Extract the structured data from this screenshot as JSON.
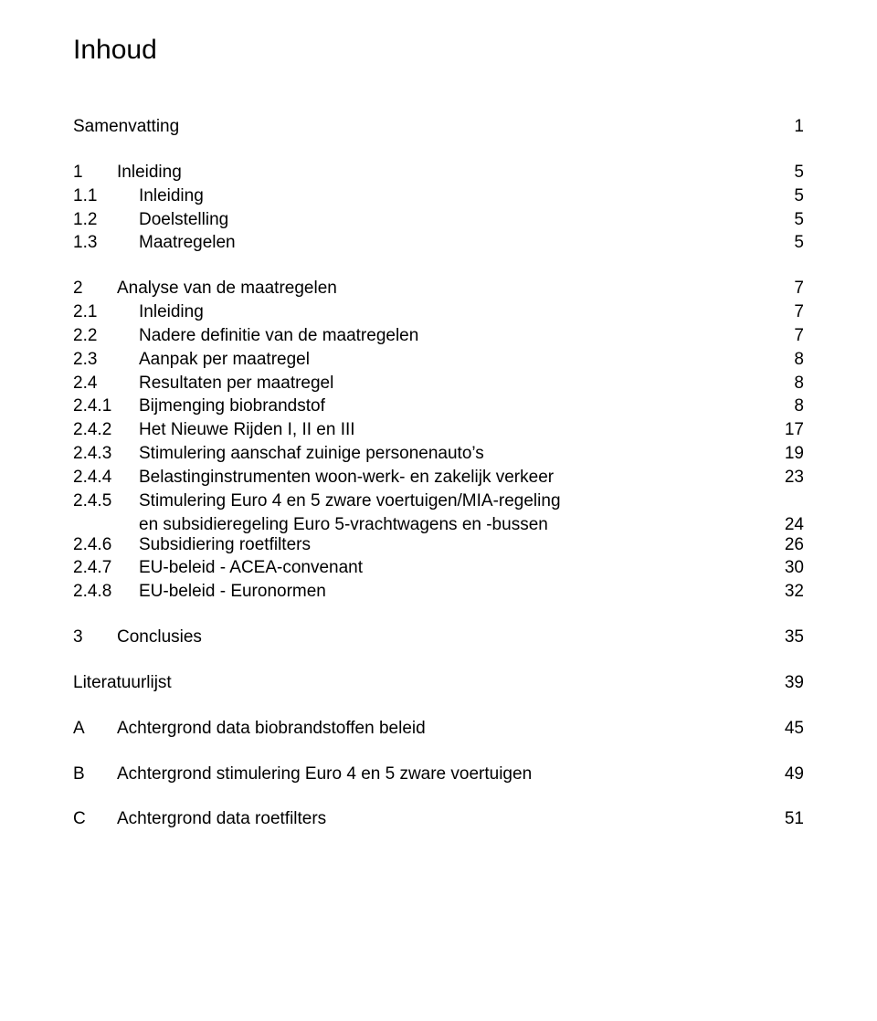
{
  "title": "Inhoud",
  "font": {
    "family": "Arial",
    "title_size_pt": 22,
    "body_size_pt": 14,
    "color": "#000000"
  },
  "background_color": "#ffffff",
  "entries": [
    {
      "num": "",
      "label": "Samenvatting",
      "page": "1",
      "level": 0
    },
    {
      "num": "1",
      "label": "Inleiding",
      "page": "5",
      "level": 1
    },
    {
      "num": "1.1",
      "label": "Inleiding",
      "page": "5",
      "level": 2
    },
    {
      "num": "1.2",
      "label": "Doelstelling",
      "page": "5",
      "level": 2
    },
    {
      "num": "1.3",
      "label": "Maatregelen",
      "page": "5",
      "level": 2
    },
    {
      "num": "2",
      "label": "Analyse van de maatregelen",
      "page": "7",
      "level": 1
    },
    {
      "num": "2.1",
      "label": "Inleiding",
      "page": "7",
      "level": 2
    },
    {
      "num": "2.2",
      "label": "Nadere definitie van de maatregelen",
      "page": "7",
      "level": 2
    },
    {
      "num": "2.3",
      "label": "Aanpak per maatregel",
      "page": "8",
      "level": 2
    },
    {
      "num": "2.4",
      "label": "Resultaten per maatregel",
      "page": "8",
      "level": 2
    },
    {
      "num": "2.4.1",
      "label": "Bijmenging biobrandstof",
      "page": "8",
      "level": 2
    },
    {
      "num": "2.4.2",
      "label": "Het Nieuwe Rijden I, II en III",
      "page": "17",
      "level": 2
    },
    {
      "num": "2.4.3",
      "label": "Stimulering aanschaf zuinige personenauto’s",
      "page": "19",
      "level": 2
    },
    {
      "num": "2.4.4",
      "label": "Belastinginstrumenten woon-werk- en zakelijk verkeer",
      "page": "23",
      "level": 2
    },
    {
      "num": "2.4.5",
      "label": "Stimulering Euro 4 en 5 zware voertuigen/MIA-regeling",
      "page": "",
      "level": 2,
      "continuation": {
        "label": "en subsidieregeling Euro 5-vrachtwagens en -bussen",
        "page": "24"
      }
    },
    {
      "num": "2.4.6",
      "label": "Subsidiering roetfilters",
      "page": "26",
      "level": 2
    },
    {
      "num": "2.4.7",
      "label": "EU-beleid - ACEA-convenant",
      "page": "30",
      "level": 2
    },
    {
      "num": "2.4.8",
      "label": "EU-beleid - Euronormen",
      "page": "32",
      "level": 2
    },
    {
      "num": "3",
      "label": "Conclusies",
      "page": "35",
      "level": 1
    },
    {
      "num": "",
      "label": "Literatuurlijst",
      "page": "39",
      "level": 0
    },
    {
      "num": "A",
      "label": "Achtergrond data biobrandstoffen beleid",
      "page": "45",
      "level": 1
    },
    {
      "num": "B",
      "label": "Achtergrond stimulering Euro 4 en 5 zware voertuigen",
      "page": "49",
      "level": 1
    },
    {
      "num": "C",
      "label": "Achtergrond data roetfilters",
      "page": "51",
      "level": 1
    }
  ]
}
